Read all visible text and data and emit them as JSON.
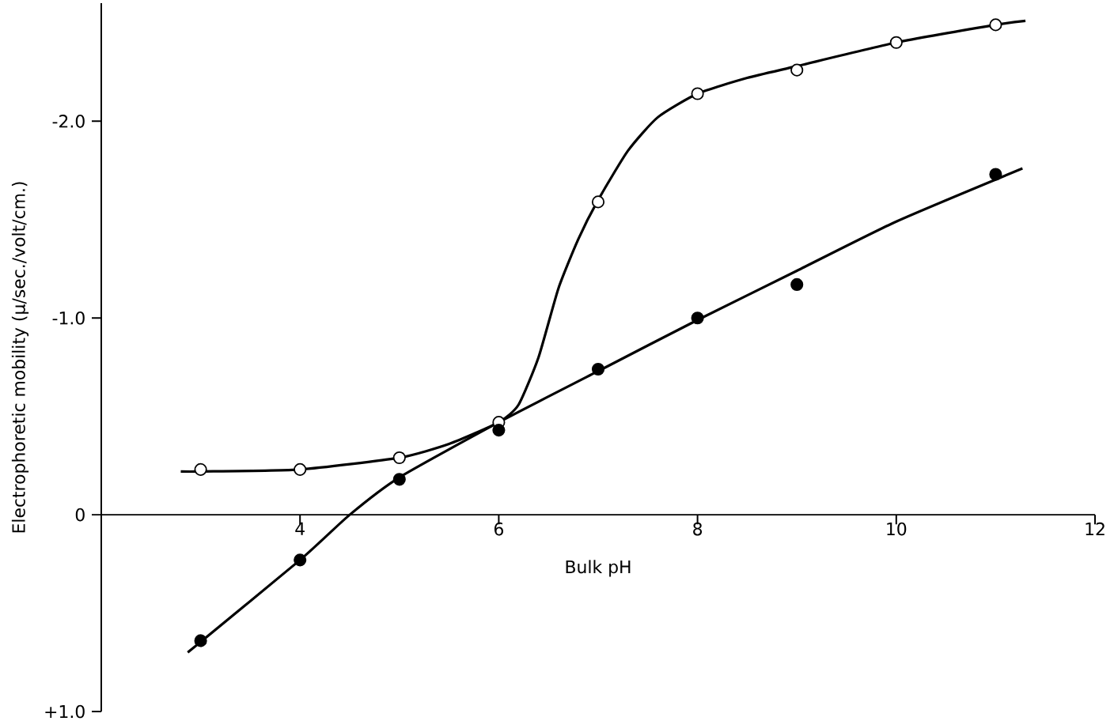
{
  "chart_data": {
    "type": "scatter",
    "xlabel": "Bulk pH",
    "ylabel": "Electrophoretic mobility (μ/sec./volt/cm.)",
    "xlim": [
      2,
      12
    ],
    "ylim": [
      1.0,
      -2.6
    ],
    "xticks": [
      4,
      6,
      8,
      10,
      12
    ],
    "yticks": [
      {
        "value": -2,
        "label": "-2.0"
      },
      {
        "value": -1,
        "label": "-1.0"
      },
      0,
      {
        "value": 1,
        "label": "+1.0"
      }
    ],
    "series": [
      {
        "type": "line",
        "marker": "none",
        "color": "#000000",
        "x": [
          2.8,
          3,
          4,
          5,
          5.5,
          6,
          6.2,
          6.4,
          6.6,
          6.8,
          7,
          7.3,
          7.6,
          8,
          8.5,
          9,
          10,
          11,
          11.3
        ],
        "values": [
          -0.22,
          -0.22,
          -0.23,
          -0.29,
          -0.36,
          -0.47,
          -0.56,
          -0.8,
          -1.15,
          -1.4,
          -1.6,
          -1.85,
          -2.02,
          -2.14,
          -2.22,
          -2.28,
          -2.4,
          -2.49,
          -2.51
        ]
      },
      {
        "type": "line",
        "marker": "none",
        "color": "#000000",
        "x": [
          2.87,
          4,
          4.5,
          5,
          6,
          7,
          8,
          9,
          10,
          11.27
        ],
        "values": [
          0.7,
          0.23,
          0.0,
          -0.19,
          -0.47,
          -0.73,
          -0.99,
          -1.24,
          -1.49,
          -1.76
        ]
      },
      {
        "marker": "circle",
        "color": "#ffffff",
        "x": [
          3,
          4,
          5,
          6,
          7,
          8,
          9,
          10,
          11
        ],
        "values": [
          -0.23,
          -0.23,
          -0.29,
          -0.47,
          -1.59,
          -2.14,
          -2.26,
          -2.4,
          -2.49
        ]
      },
      {
        "marker": "circle",
        "color": "#000000",
        "x": [
          3,
          4,
          5,
          6,
          7,
          8,
          9,
          11
        ],
        "values": [
          0.64,
          0.23,
          -0.18,
          -0.43,
          -0.74,
          -1.0,
          -1.17,
          -1.73
        ]
      }
    ]
  }
}
